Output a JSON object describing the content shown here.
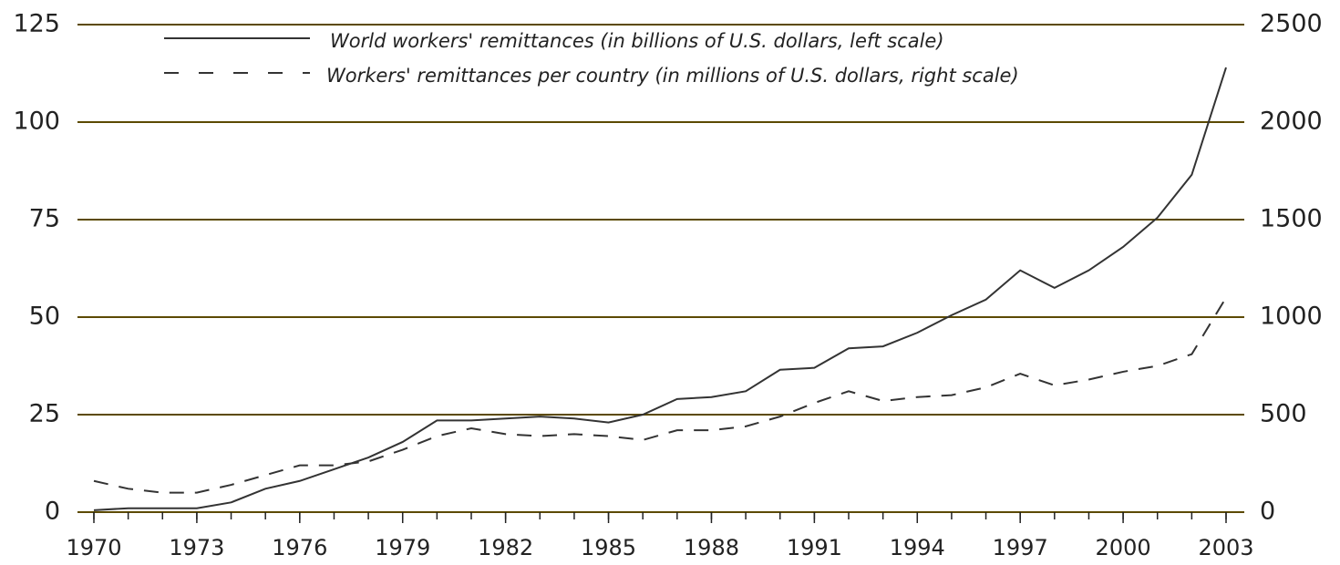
{
  "chart_data": {
    "type": "line",
    "x": [
      1970,
      1971,
      1972,
      1973,
      1974,
      1975,
      1976,
      1977,
      1978,
      1979,
      1980,
      1981,
      1982,
      1983,
      1984,
      1985,
      1986,
      1987,
      1988,
      1989,
      1990,
      1991,
      1992,
      1993,
      1994,
      1995,
      1996,
      1997,
      1998,
      1999,
      2000,
      2001,
      2002,
      2003
    ],
    "series": [
      {
        "name": "World workers' remittances (in billions of U.S. dollars, left scale)",
        "color": "#333333",
        "dash": false,
        "values": [
          0.5,
          1,
          1,
          1,
          2.5,
          6,
          8,
          11,
          14,
          18,
          23.5,
          23.5,
          24,
          24.5,
          24,
          23,
          25,
          29,
          29.5,
          31,
          36.5,
          37,
          42,
          42.5,
          46,
          50.5,
          54.5,
          62,
          57.5,
          62,
          68,
          75.5,
          86.5,
          114
        ]
      },
      {
        "name": "Workers' remittances per country (in millions of U.S. dollars, right scale)",
        "color": "#333333",
        "dash": true,
        "axis": "y2",
        "values": [
          160,
          120,
          100,
          100,
          140,
          190,
          240,
          240,
          260,
          320,
          390,
          430,
          400,
          390,
          400,
          390,
          370,
          420,
          420,
          440,
          490,
          560,
          620,
          570,
          590,
          600,
          640,
          710,
          650,
          680,
          720,
          750,
          810,
          1100
        ]
      }
    ],
    "xlim": [
      1970,
      2003
    ],
    "xticks": [
      1970,
      1973,
      1976,
      1979,
      1982,
      1985,
      1988,
      1991,
      1994,
      1997,
      2000,
      2003
    ],
    "ylim": [
      0,
      125
    ],
    "yticks": [
      0,
      25,
      50,
      75,
      100,
      125
    ],
    "y2lim": [
      0,
      2500
    ],
    "y2ticks": [
      0,
      500,
      1000,
      1500,
      2000,
      2500
    ],
    "grid": true,
    "grid_color": "#5c4a00"
  }
}
